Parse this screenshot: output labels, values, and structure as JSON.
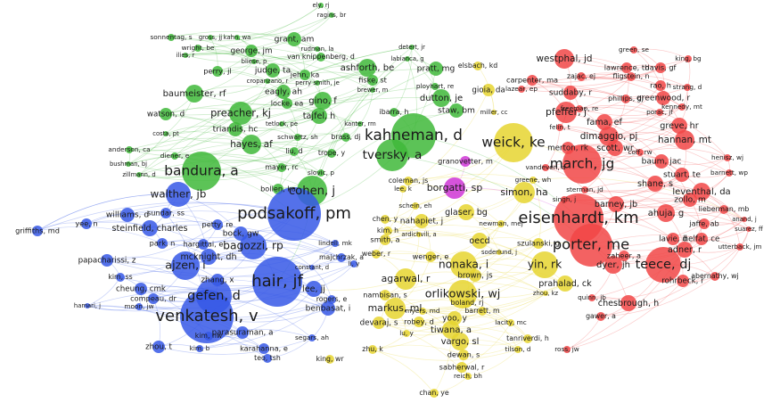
{
  "nodes": [
    {
      "label": "ely, rj"
    },
    {
      "label": "ragins, br"
    },
    {
      "label": "sonnentag, s"
    },
    {
      "label": "gross, jj"
    },
    {
      "label": "kahn, wa"
    },
    {
      "label": "grant, am"
    },
    {
      "label": "rudman, la"
    },
    {
      "label": "van knippenberg, d"
    },
    {
      "label": "george, jm"
    },
    {
      "label": "wright, be"
    },
    {
      "label": "ilies, r"
    },
    {
      "label": "bliese, p"
    },
    {
      "label": "perry, jl"
    },
    {
      "label": "judge, ta"
    },
    {
      "label": "jehn, ka"
    },
    {
      "label": "ashforth, be"
    },
    {
      "label": "cropanzano, r"
    },
    {
      "label": "perry smith, je"
    },
    {
      "label": "fiske, st"
    },
    {
      "label": "brewer, m"
    },
    {
      "label": "baumeister, rf"
    },
    {
      "label": "eagly, ah"
    },
    {
      "label": "locke, ea"
    },
    {
      "label": "gino, f"
    },
    {
      "label": "watson, d"
    },
    {
      "label": "preacher, kj"
    },
    {
      "label": "tajfel, h"
    },
    {
      "label": "tetlock, pe"
    },
    {
      "label": "kanter, rm"
    },
    {
      "label": "costa, pt"
    },
    {
      "label": "triandis, hc"
    },
    {
      "label": "schwartz, sh"
    },
    {
      "label": "brass, dj"
    },
    {
      "label": "hayes, af"
    },
    {
      "label": "anderson, ca"
    },
    {
      "label": "liu, d"
    },
    {
      "label": "diener, e"
    },
    {
      "label": "trope, y"
    },
    {
      "label": "bushman, bj"
    },
    {
      "label": "mayer, rc"
    },
    {
      "label": "bandura, a"
    },
    {
      "label": "zillmann, d"
    },
    {
      "label": "slovic, p"
    },
    {
      "label": "bollen, ka"
    },
    {
      "label": "cohen, j"
    },
    {
      "label": "detert, jr"
    },
    {
      "label": "labianca, g"
    },
    {
      "label": "pratt, mg"
    },
    {
      "label": "elsbach, kd"
    },
    {
      "label": "ployhart, re"
    },
    {
      "label": "dutton, je"
    },
    {
      "label": "gioia, da"
    },
    {
      "label": "miller, cc"
    },
    {
      "label": "staw, bm"
    },
    {
      "label": "ibarra, h"
    },
    {
      "label": "kahneman, d"
    },
    {
      "label": "tversky, a"
    },
    {
      "label": "granovetter, m"
    },
    {
      "label": "weick, ke"
    },
    {
      "label": "coleman, js"
    },
    {
      "label": "lee, k"
    },
    {
      "label": "borgatti, sp"
    },
    {
      "label": "schein, eh"
    },
    {
      "label": "simon, ha"
    },
    {
      "label": "greene, wh"
    },
    {
      "label": "glaser, bg"
    },
    {
      "label": "chen, y"
    },
    {
      "label": "nahapiet, j"
    },
    {
      "label": "newman, mej"
    },
    {
      "label": "kim, h"
    },
    {
      "label": "ardichvili, a"
    },
    {
      "label": "smith, a"
    },
    {
      "label": "oecd"
    },
    {
      "label": "szulanski, g"
    },
    {
      "label": "soderlund, j"
    },
    {
      "label": "weber, r"
    },
    {
      "label": "wenger, e"
    },
    {
      "label": "nonaka, i"
    },
    {
      "label": "yin, rk"
    },
    {
      "label": "agarwal, r"
    },
    {
      "label": "brown, js"
    },
    {
      "label": "prahalad, ck"
    },
    {
      "label": "orlikowski, wj"
    },
    {
      "label": "nambisan, s"
    },
    {
      "label": "zhou, kz"
    },
    {
      "label": "markus, ml"
    },
    {
      "label": "boland, rj"
    },
    {
      "label": "myers, md"
    },
    {
      "label": "barrett, m"
    },
    {
      "label": "yoo, y"
    },
    {
      "label": "robey, d"
    },
    {
      "label": "lacity, mc"
    },
    {
      "label": "devaraj, s"
    },
    {
      "label": "tiwana, a"
    },
    {
      "label": "lu, y"
    },
    {
      "label": "tanriverdi, h"
    },
    {
      "label": "vargo, sl"
    },
    {
      "label": "tilson, d"
    },
    {
      "label": "zhu, k"
    },
    {
      "label": "dewan, s"
    },
    {
      "label": "sabherwal, r"
    },
    {
      "label": "reich, bh"
    },
    {
      "label": "chan, ye"
    },
    {
      "label": "griffiths, md"
    },
    {
      "label": "yee, n"
    },
    {
      "label": "williams, d"
    },
    {
      "label": "sundar, ss"
    },
    {
      "label": "walther, jb"
    },
    {
      "label": "steinfield, charles"
    },
    {
      "label": "petty, re"
    },
    {
      "label": "podsakoff, pm"
    },
    {
      "label": "bock, gw"
    },
    {
      "label": "park, n"
    },
    {
      "label": "hargittai, e"
    },
    {
      "label": "bagozzi, rp"
    },
    {
      "label": "lindell, mk"
    },
    {
      "label": "mcknight, dh"
    },
    {
      "label": "majchrzak, a"
    },
    {
      "label": "papacharissi, z"
    },
    {
      "label": "ajzen, i"
    },
    {
      "label": "constant, d"
    },
    {
      "label": "li, y"
    },
    {
      "label": "kim, ss"
    },
    {
      "label": "zhang, x"
    },
    {
      "label": "hair, jf"
    },
    {
      "label": "lee, jj"
    },
    {
      "label": "cheung, cmk"
    },
    {
      "label": "gefen, d"
    },
    {
      "label": "compeau, dr"
    },
    {
      "label": "rogers, e"
    },
    {
      "label": "moon, jw"
    },
    {
      "label": "hamari, j"
    },
    {
      "label": "benbasat, i"
    },
    {
      "label": "venkatesh, v"
    },
    {
      "label": "parasuraman, a"
    },
    {
      "label": "kim, hw"
    },
    {
      "label": "segars, ah"
    },
    {
      "label": "zhou, t"
    },
    {
      "label": "kim, b"
    },
    {
      "label": "karahanna, e"
    },
    {
      "label": "teo, tsh"
    },
    {
      "label": "king, wr"
    },
    {
      "label": "green, se"
    },
    {
      "label": "king, bg"
    },
    {
      "label": "westphal, jd"
    },
    {
      "label": "lawrence, tb"
    },
    {
      "label": "davis, gf"
    },
    {
      "label": "zajac, ej"
    },
    {
      "label": "fligstein, n"
    },
    {
      "label": "carpenter, ma"
    },
    {
      "label": "lazear, ep"
    },
    {
      "label": "rao, h"
    },
    {
      "label": "strang, d"
    },
    {
      "label": "suddaby, r"
    },
    {
      "label": "phillips, dj"
    },
    {
      "label": "greenwood, r"
    },
    {
      "label": "kennedy, mt"
    },
    {
      "label": "freeman, re"
    },
    {
      "label": "pfeffer, j"
    },
    {
      "label": "porac, jf"
    },
    {
      "label": "fama, ef"
    },
    {
      "label": "greve, hr"
    },
    {
      "label": "felin, t"
    },
    {
      "label": "dimaggio, pj"
    },
    {
      "label": "hannan, mt"
    },
    {
      "label": "merton, rk"
    },
    {
      "label": "scott, wr"
    },
    {
      "label": "coff, rw"
    },
    {
      "label": "henisz, wj"
    },
    {
      "label": "baum, jac"
    },
    {
      "label": "march, jg"
    },
    {
      "label": "vandeven, a"
    },
    {
      "label": "barnett, wp"
    },
    {
      "label": "stuart, te"
    },
    {
      "label": "shane, s"
    },
    {
      "label": "sterman, jd"
    },
    {
      "label": "leventhal, da"
    },
    {
      "label": "singh, j"
    },
    {
      "label": "zollo, m"
    },
    {
      "label": "barney, jb"
    },
    {
      "label": "lieberman, mb"
    },
    {
      "label": "ahuja, g"
    },
    {
      "label": "eisenhardt, km"
    },
    {
      "label": "anand, j"
    },
    {
      "label": "jaffe, ab"
    },
    {
      "label": "suarez, ff"
    },
    {
      "label": "lavie, d"
    },
    {
      "label": "helfat, ce"
    },
    {
      "label": "porter, me"
    },
    {
      "label": "utterback, jm"
    },
    {
      "label": "adner, r"
    },
    {
      "label": "zaheer, a"
    },
    {
      "label": "dyer, jh"
    },
    {
      "label": "teece, dj"
    },
    {
      "label": "abernathy, wj"
    },
    {
      "label": "rohrbeck, r"
    },
    {
      "label": "quinn, jb"
    },
    {
      "label": "chesbrough, h"
    },
    {
      "label": "gawer, a"
    },
    {
      "label": "ross, jw"
    }
  ]
}
